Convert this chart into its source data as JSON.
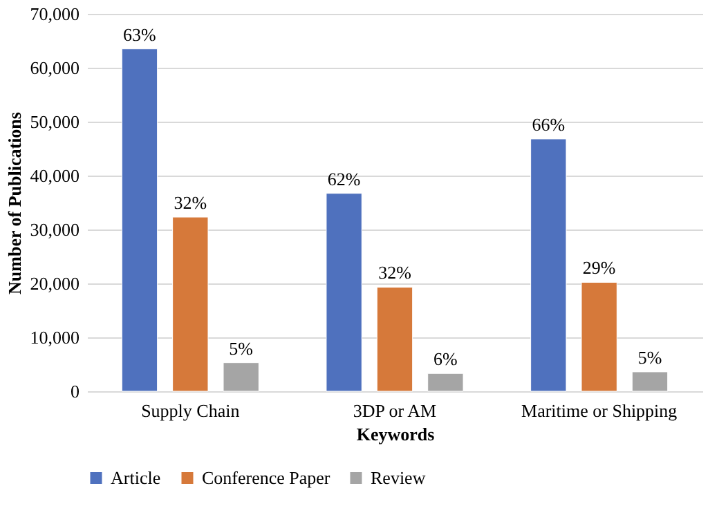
{
  "chart_data": {
    "type": "bar",
    "xlabel": "Keywords",
    "ylabel": "Number of Publications",
    "categories": [
      "Supply Chain",
      "3DP or AM",
      "Maritime or Shipping"
    ],
    "series": [
      {
        "name": "Article",
        "color": "#4f71be",
        "values": [
          63500,
          36700,
          46800
        ]
      },
      {
        "name": "Conference Paper",
        "color": "#d6793a",
        "values": [
          32300,
          19300,
          20200
        ]
      },
      {
        "name": "Review",
        "color": "#a5a5a5",
        "values": [
          5300,
          3300,
          3600
        ]
      }
    ],
    "annotations": [
      "63%",
      "62%",
      "66%",
      "32%",
      "32%",
      "29%",
      "5%",
      "6%",
      "5%"
    ],
    "ylim": [
      0,
      70000
    ],
    "yticks": [
      0,
      {
        "value": 10000,
        "label": "10,000"
      },
      {
        "value": 20000,
        "label": "20,000"
      },
      {
        "value": 30000,
        "label": "30,000"
      },
      {
        "value": 40000,
        "label": "40,000"
      },
      {
        "value": 50000,
        "label": "50,000"
      },
      {
        "value": 60000,
        "label": "60,000"
      },
      {
        "value": 70000,
        "label": "70,000"
      }
    ],
    "grid": "y",
    "legend": "bottom"
  }
}
